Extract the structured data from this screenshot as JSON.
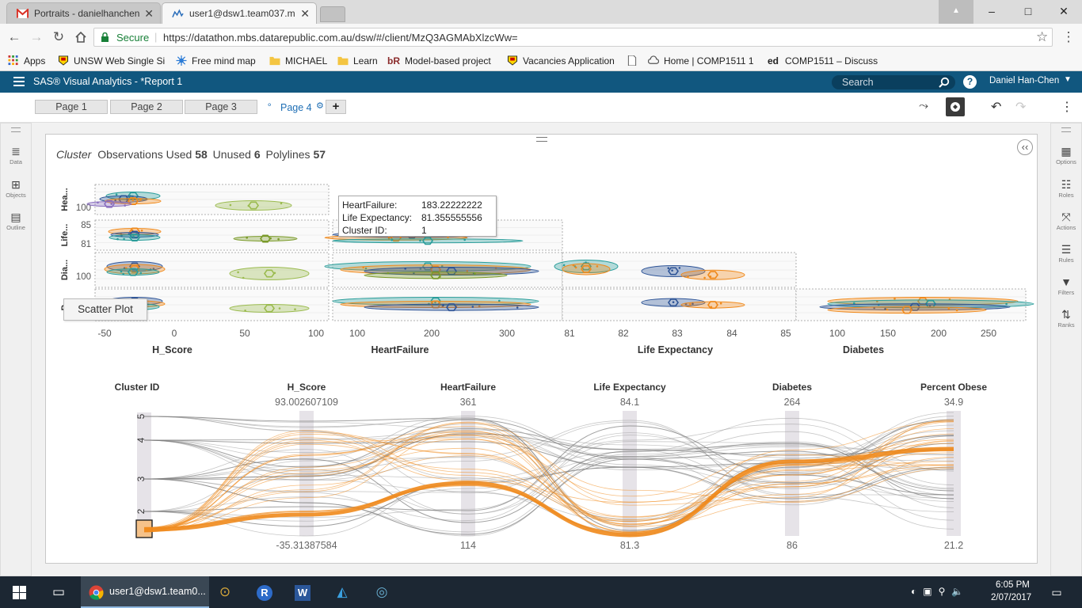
{
  "browser": {
    "tabs": [
      {
        "title": "Portraits - danielhanchen",
        "active": false
      },
      {
        "title": "user1@dsw1.team037.m",
        "active": true
      }
    ],
    "window_controls": {
      "user": "▲",
      "minimize": "–",
      "maximize": "□",
      "close": "✕"
    },
    "secure_label": "Secure",
    "url": "https://datathon.mbs.datarepublic.com.au/dsw/#/client/MzQ3AGMAbXlzcWw=",
    "bookmarks": [
      "Apps",
      "UNSW Web Single Si",
      "Free mind map",
      "MICHAEL",
      "Learn",
      "Model-based project",
      "Vacancies Application",
      "Home | COMP1511 1",
      "COMP1511 – Discuss"
    ],
    "bookmark_badges": {
      "br": "bR",
      "ed": "ed"
    }
  },
  "sas": {
    "app_title": "SAS® Visual Analytics - *Report 1",
    "search_placeholder": "Search",
    "help_label": "?",
    "user_name": "Daniel Han-Chen",
    "page_tabs": [
      "Page 1",
      "Page 2",
      "Page 3"
    ],
    "active_page": "Page 4",
    "add_label": "+",
    "left_panel": [
      "Data",
      "Objects",
      "Outline"
    ],
    "right_panel": [
      "Options",
      "Roles",
      "Actions",
      "Rules",
      "Filters",
      "Ranks"
    ],
    "collapse_label": "‹‹",
    "tooltip_label": "Scatter Plot"
  },
  "chart_data": [
    {
      "type": "scatter",
      "title_italic": "Cluster",
      "summary": {
        "observations_used_label": "Observations Used",
        "observations_used": "58",
        "unused_label": "Unused",
        "unused": "6",
        "polylines_label": "Polylines",
        "polylines": "57"
      },
      "columns": [
        {
          "label": "H_Score",
          "ticks": [
            "-50",
            "0",
            "50",
            "100"
          ]
        },
        {
          "label": "HeartFailure",
          "ticks": [
            "100",
            "200",
            "300"
          ]
        },
        {
          "label": "Life Expectancy",
          "ticks": [
            "81",
            "82",
            "83",
            "84",
            "85"
          ]
        },
        {
          "label": "Diabetes",
          "ticks": [
            "100",
            "150",
            "200",
            "250"
          ]
        }
      ],
      "rows": [
        {
          "label": "Hea...",
          "ticks": [
            "100"
          ]
        },
        {
          "label": "Life...",
          "ticks": [
            "85",
            "81"
          ]
        },
        {
          "label": "Dia...",
          "ticks": [
            "100"
          ]
        },
        {
          "label": "P...",
          "ticks": []
        }
      ],
      "tooltip": {
        "rows": [
          {
            "key": "HeartFailure:",
            "value": "183.22222222"
          },
          {
            "key": "Life Expectancy:",
            "value": "81.355555556"
          },
          {
            "key": "Cluster ID:",
            "value": "1"
          }
        ]
      },
      "cluster_colors": {
        "1": "#f08a1c",
        "2": "#2f5597",
        "3": "#2a9d9a",
        "4": "#7a9a2a",
        "5": "#8a6fbf"
      }
    },
    {
      "type": "parallel_coordinates",
      "axes": [
        {
          "label": "Cluster ID",
          "max": "",
          "min": "",
          "ticks": [
            "5",
            "4",
            "3",
            "2",
            "1"
          ]
        },
        {
          "label": "H_Score",
          "max": "93.002607109",
          "min": "-35.31387584"
        },
        {
          "label": "HeartFailure",
          "max": "361",
          "min": "114"
        },
        {
          "label": "Life Expectancy",
          "max": "84.1",
          "min": "81.3"
        },
        {
          "label": "Diabetes",
          "max": "264",
          "min": "86"
        },
        {
          "label": "Percent Obese",
          "max": "34.9",
          "min": "21.2"
        }
      ],
      "highlighted_cluster": "1",
      "highlight_color": "#f08a1c",
      "line_color": "#8a8a8a"
    }
  ],
  "taskbar": {
    "app_label": "user1@dsw1.team0...",
    "time": "6:05 PM",
    "date": "2/07/2017"
  }
}
